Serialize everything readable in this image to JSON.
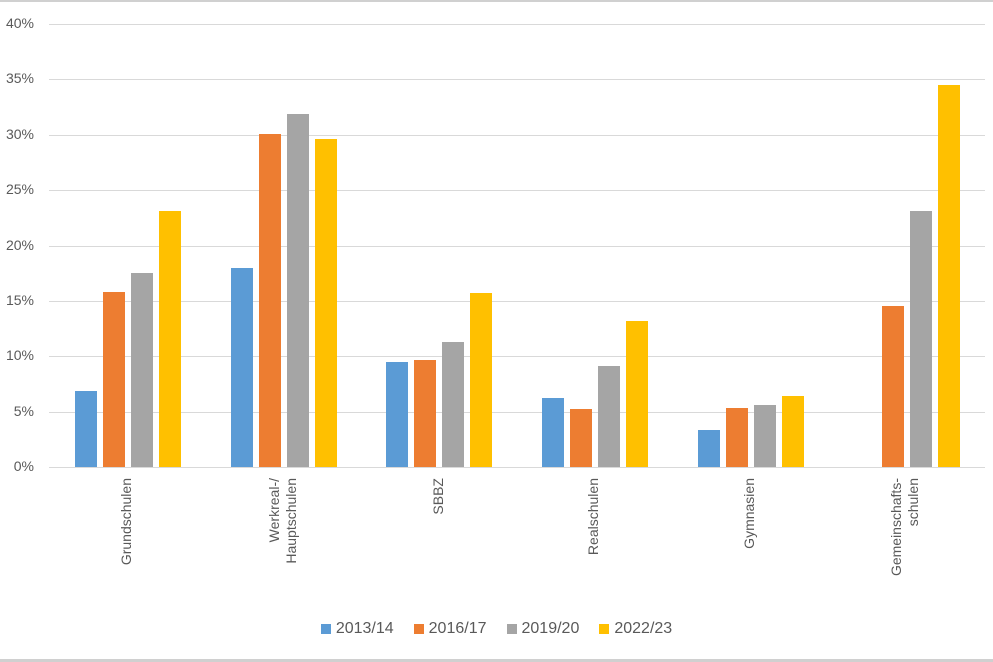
{
  "chart_data": {
    "type": "bar",
    "title": "",
    "xlabel": "",
    "ylabel": "",
    "ylim": [
      0,
      40
    ],
    "y_ticks": [
      "0%",
      "5%",
      "10%",
      "15%",
      "20%",
      "25%",
      "30%",
      "35%",
      "40%"
    ],
    "grid": true,
    "legend_position": "bottom",
    "categories": [
      "Grundschulen",
      "Werkreal-/\nHauptschulen",
      "SBBZ",
      "Realschulen",
      "Gymnasien",
      "Gemeinschafts-\nschulen"
    ],
    "series": [
      {
        "name": "2013/14",
        "color": "#5B9BD5",
        "values": [
          6.9,
          18.0,
          9.5,
          6.2,
          3.3,
          null
        ]
      },
      {
        "name": "2016/17",
        "color": "#ED7D31",
        "values": [
          15.8,
          30.1,
          9.7,
          5.2,
          5.3,
          14.5
        ]
      },
      {
        "name": "2019/20",
        "color": "#A5A5A5",
        "values": [
          17.5,
          31.9,
          11.3,
          9.1,
          5.6,
          23.1
        ]
      },
      {
        "name": "2022/23",
        "color": "#FFC000",
        "values": [
          23.1,
          29.6,
          15.7,
          13.2,
          6.4,
          34.5
        ]
      }
    ]
  }
}
